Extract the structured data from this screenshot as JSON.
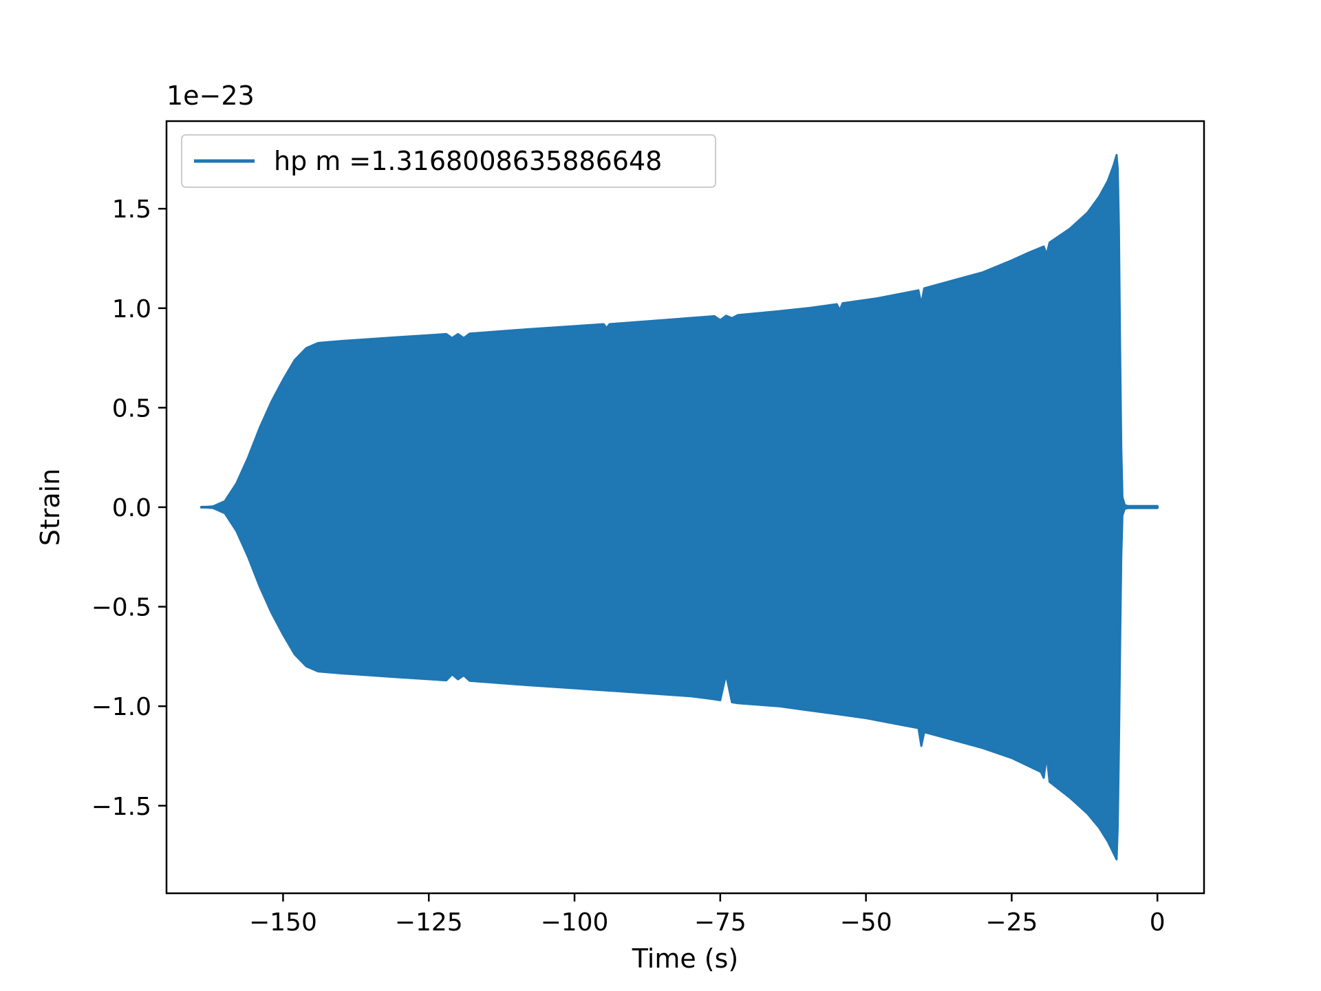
{
  "chart_data": {
    "type": "line",
    "title": "",
    "xlabel": "Time (s)",
    "ylabel": "Strain",
    "y_offset_label": "1e−23",
    "xlim": [
      -170,
      8
    ],
    "ylim": [
      -1.94,
      1.94
    ],
    "y_scale_factor": 1e-23,
    "x_ticks": [
      -150,
      -125,
      -100,
      -75,
      -50,
      -25,
      0
    ],
    "x_tick_labels": [
      "−150",
      "−125",
      "−100",
      "−75",
      "−50",
      "−25",
      "0"
    ],
    "y_ticks": [
      1.5,
      1.0,
      0.5,
      0.0,
      -0.5,
      -1.0,
      -1.5
    ],
    "y_tick_labels": [
      "1.5",
      "1.0",
      "0.5",
      "0.0",
      "−0.5",
      "−1.0",
      "−1.5"
    ],
    "grid": false,
    "legend": {
      "position": "upper-left"
    },
    "series": [
      {
        "name": "hp m =1.3168008635886648",
        "color": "#1f77b4",
        "signal_start": -164.0,
        "signal_end": 0.0,
        "upper_envelope": [
          [
            -164.0,
            0.0
          ],
          [
            -162.0,
            0.004
          ],
          [
            -160.0,
            0.03
          ],
          [
            -158.0,
            0.12
          ],
          [
            -156.0,
            0.25
          ],
          [
            -154.0,
            0.4
          ],
          [
            -152.0,
            0.53
          ],
          [
            -150.0,
            0.64
          ],
          [
            -148.0,
            0.74
          ],
          [
            -146.0,
            0.8
          ],
          [
            -144.0,
            0.825
          ],
          [
            -140.0,
            0.835
          ],
          [
            -130.0,
            0.855
          ],
          [
            -122.0,
            0.87
          ],
          [
            -121.0,
            0.85
          ],
          [
            -120.0,
            0.87
          ],
          [
            -119.0,
            0.85
          ],
          [
            -118.0,
            0.872
          ],
          [
            -110.0,
            0.89
          ],
          [
            -100.0,
            0.91
          ],
          [
            -95.0,
            0.92
          ],
          [
            -94.5,
            0.9
          ],
          [
            -94.0,
            0.92
          ],
          [
            -85.0,
            0.94
          ],
          [
            -76.0,
            0.96
          ],
          [
            -75.0,
            0.94
          ],
          [
            -74.0,
            0.962
          ],
          [
            -73.0,
            0.95
          ],
          [
            -72.0,
            0.965
          ],
          [
            -65.0,
            0.985
          ],
          [
            -60.0,
            1.0
          ],
          [
            -55.0,
            1.02
          ],
          [
            -54.5,
            0.99
          ],
          [
            -54.0,
            1.025
          ],
          [
            -48.0,
            1.05
          ],
          [
            -41.0,
            1.09
          ],
          [
            -40.5,
            1.02
          ],
          [
            -40.0,
            1.1
          ],
          [
            -35.0,
            1.14
          ],
          [
            -30.0,
            1.18
          ],
          [
            -25.0,
            1.24
          ],
          [
            -22.0,
            1.28
          ],
          [
            -19.5,
            1.31
          ],
          [
            -19.0,
            1.27
          ],
          [
            -18.5,
            1.33
          ],
          [
            -15.0,
            1.4
          ],
          [
            -12.0,
            1.48
          ],
          [
            -10.0,
            1.56
          ],
          [
            -8.5,
            1.64
          ],
          [
            -7.5,
            1.72
          ],
          [
            -7.0,
            1.77
          ],
          [
            -6.8,
            1.7
          ],
          [
            -6.6,
            1.4
          ],
          [
            -6.4,
            0.8
          ],
          [
            -6.2,
            0.3
          ],
          [
            -6.0,
            0.05
          ],
          [
            -5.6,
            0.01
          ],
          [
            -5.0,
            0.006
          ],
          [
            0.0,
            0.006
          ]
        ],
        "lower_envelope": [
          [
            -164.0,
            0.0
          ],
          [
            -162.0,
            -0.004
          ],
          [
            -160.0,
            -0.03
          ],
          [
            -158.0,
            -0.12
          ],
          [
            -156.0,
            -0.25
          ],
          [
            -154.0,
            -0.4
          ],
          [
            -152.0,
            -0.53
          ],
          [
            -150.0,
            -0.64
          ],
          [
            -148.0,
            -0.74
          ],
          [
            -146.0,
            -0.8
          ],
          [
            -144.0,
            -0.825
          ],
          [
            -140.0,
            -0.835
          ],
          [
            -130.0,
            -0.855
          ],
          [
            -122.0,
            -0.87
          ],
          [
            -121.0,
            -0.84
          ],
          [
            -120.0,
            -0.865
          ],
          [
            -119.0,
            -0.845
          ],
          [
            -118.0,
            -0.872
          ],
          [
            -110.0,
            -0.89
          ],
          [
            -100.0,
            -0.91
          ],
          [
            -90.0,
            -0.93
          ],
          [
            -80.0,
            -0.95
          ],
          [
            -76.0,
            -0.965
          ],
          [
            -75.0,
            -0.97
          ],
          [
            -74.0,
            -0.84
          ],
          [
            -73.0,
            -0.98
          ],
          [
            -72.0,
            -0.985
          ],
          [
            -65.0,
            -1.0
          ],
          [
            -60.0,
            -1.02
          ],
          [
            -55.0,
            -1.04
          ],
          [
            -50.0,
            -1.06
          ],
          [
            -41.0,
            -1.11
          ],
          [
            -40.5,
            -1.2
          ],
          [
            -40.0,
            -1.13
          ],
          [
            -35.0,
            -1.17
          ],
          [
            -30.0,
            -1.21
          ],
          [
            -25.0,
            -1.26
          ],
          [
            -20.0,
            -1.33
          ],
          [
            -19.5,
            -1.36
          ],
          [
            -19.0,
            -1.25
          ],
          [
            -18.5,
            -1.38
          ],
          [
            -15.0,
            -1.46
          ],
          [
            -12.0,
            -1.54
          ],
          [
            -10.0,
            -1.61
          ],
          [
            -8.5,
            -1.68
          ],
          [
            -7.5,
            -1.74
          ],
          [
            -7.0,
            -1.77
          ],
          [
            -6.8,
            -1.6
          ],
          [
            -6.6,
            -1.2
          ],
          [
            -6.4,
            -0.7
          ],
          [
            -6.2,
            -0.25
          ],
          [
            -6.0,
            -0.04
          ],
          [
            -5.6,
            -0.008
          ],
          [
            -5.0,
            -0.004
          ],
          [
            0.0,
            -0.004
          ]
        ]
      }
    ]
  }
}
